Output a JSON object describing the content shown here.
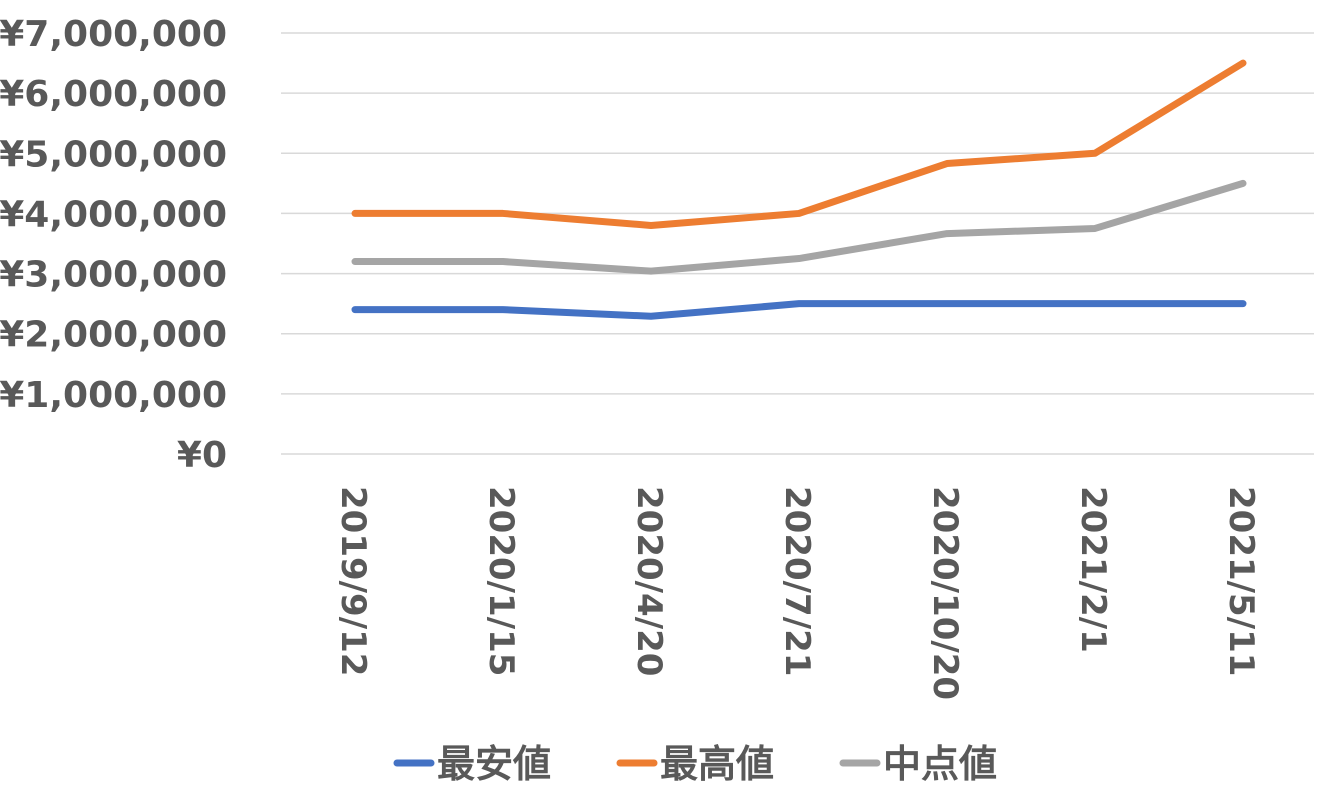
{
  "chart_data": {
    "type": "line",
    "title": "",
    "xlabel": "",
    "ylabel": "",
    "categories": [
      "2019/9/12",
      "2020/1/15",
      "2020/4/20",
      "2020/7/21",
      "2020/10/20",
      "2021/2/1",
      "2021/5/11"
    ],
    "y_ticks": [
      "¥0",
      "¥1,000,000",
      "¥2,000,000",
      "¥3,000,000",
      "¥4,000,000",
      "¥5,000,000",
      "¥6,000,000",
      "¥7,000,000"
    ],
    "ylim": [
      0,
      7000000
    ],
    "grid": true,
    "legend_position": "bottom",
    "series": [
      {
        "name": "最安値",
        "color": "#4472C4",
        "values": [
          2400000,
          2400000,
          2290000,
          2500000,
          2500000,
          2500000,
          2500000
        ]
      },
      {
        "name": "最高値",
        "color": "#ED7D31",
        "values": [
          4000000,
          4000000,
          3800000,
          4000000,
          4830000,
          5000000,
          6500000
        ]
      },
      {
        "name": "中点値",
        "color": "#A5A5A5",
        "values": [
          3200000,
          3200000,
          3040000,
          3250000,
          3665000,
          3750000,
          4500000
        ]
      }
    ]
  }
}
